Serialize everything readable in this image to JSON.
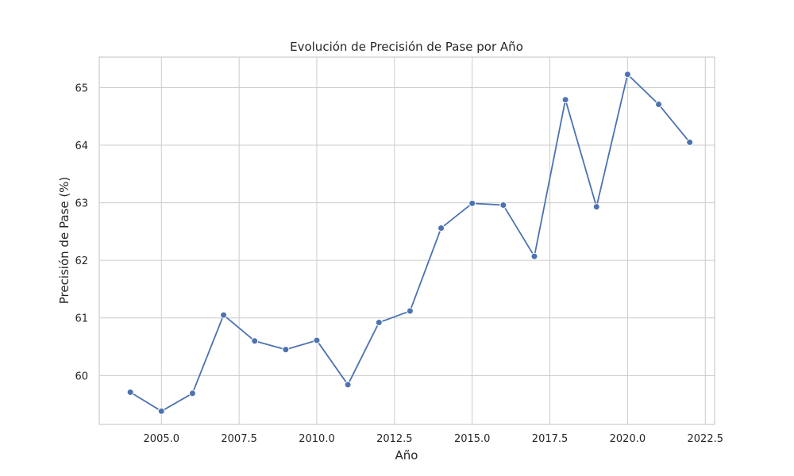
{
  "chart_data": {
    "type": "line",
    "title": "Evolución de Precisión de Pase por Año",
    "xlabel": "Año",
    "ylabel": "Precisión de Pase (%)",
    "xlim": [
      2003.0,
      2022.8
    ],
    "ylim": [
      59.15,
      65.53
    ],
    "xticks": [
      2005.0,
      2007.5,
      2010.0,
      2012.5,
      2015.0,
      2017.5,
      2020.0,
      2022.5
    ],
    "xtick_labels": [
      "2005.0",
      "2007.5",
      "2010.0",
      "2012.5",
      "2015.0",
      "2017.5",
      "2020.0",
      "2022.5"
    ],
    "yticks": [
      60,
      61,
      62,
      63,
      64,
      65
    ],
    "ytick_labels": [
      "60",
      "61",
      "62",
      "63",
      "64",
      "65"
    ],
    "grid": true,
    "series": [
      {
        "color": "#4c72b0",
        "marker": "circle",
        "x": [
          2004,
          2005,
          2006,
          2007,
          2008,
          2009,
          2010,
          2011,
          2012,
          2013,
          2014,
          2015,
          2016,
          2017,
          2018,
          2019,
          2020,
          2021,
          2022
        ],
        "y": [
          59.71,
          59.38,
          59.69,
          61.05,
          60.6,
          60.45,
          60.61,
          59.84,
          60.92,
          61.12,
          62.56,
          62.99,
          62.96,
          62.07,
          64.79,
          62.93,
          65.23,
          64.71,
          64.05
        ]
      }
    ]
  }
}
